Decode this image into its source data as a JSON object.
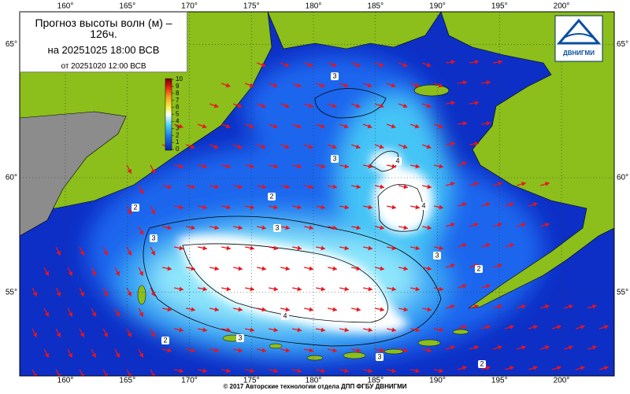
{
  "header": {
    "title": "Прогноз высоты волн (м) – 126ч.",
    "forecast_time": "на 20251025 18:00 ВСВ",
    "issued": "от 20251020 12:00 ВСВ"
  },
  "logo": "ДВНИГМИ",
  "legend": {
    "ticks": [
      0,
      1,
      2,
      3,
      4,
      5,
      6,
      7,
      8,
      9,
      10
    ]
  },
  "map": {
    "lon_ticks": [
      {
        "value": 160,
        "label": "160°"
      },
      {
        "value": 165,
        "label": "165°"
      },
      {
        "value": 170,
        "label": "170°"
      },
      {
        "value": 175,
        "label": "175°"
      },
      {
        "value": 180,
        "label": "180°"
      },
      {
        "value": 185,
        "label": "185°"
      },
      {
        "value": 190,
        "label": "190°"
      },
      {
        "value": 195,
        "label": "195°"
      },
      {
        "value": 200,
        "label": "200°"
      }
    ],
    "lat_ticks": [
      {
        "value": 55,
        "label": "55°"
      },
      {
        "value": 60,
        "label": "60°"
      },
      {
        "value": 65,
        "label": "65°"
      }
    ],
    "contour_labels": [
      "3",
      "3",
      "2",
      "3",
      "4",
      "2",
      "3",
      "4",
      "4",
      "3",
      "2",
      "3",
      "2",
      "2",
      "3"
    ]
  },
  "footer": "© 2017 Авторские технологии отдела ДПП ФГБУ ДВНИГМИ"
}
